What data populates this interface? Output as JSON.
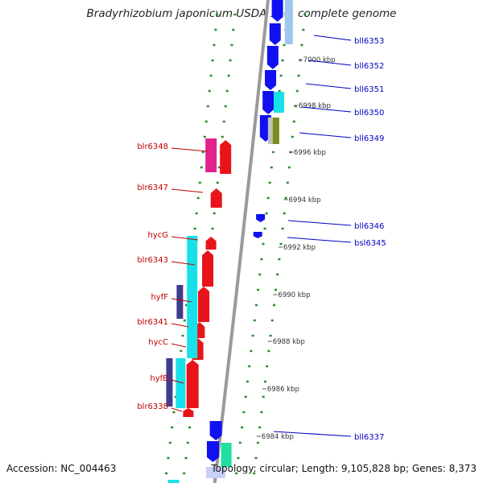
{
  "title": "Bradyrhizobium japonicum USDA 110, complete genome",
  "accession": "Accession: NC_004463",
  "summary": "Topology: circular; Length: 9,105,828 bp; Genes: 8,373",
  "colors": {
    "forward": "#e8141a",
    "forward_alt": "#e0248c",
    "reverse": "#1010f0",
    "cyan": "#18e0e8",
    "navy": "#403c8c",
    "forward_label": "#c00000",
    "reverse_label": "#0000c0",
    "tick": "#2a8a2a",
    "backbone": "#9a9a9a"
  },
  "scale_labels": [
    {
      "text": "7000 kbp"
    },
    {
      "text": "6998 kbp"
    },
    {
      "text": "6996 kbp"
    },
    {
      "text": "6994 kbp"
    },
    {
      "text": "6992 kbp"
    },
    {
      "text": "6990 kbp"
    },
    {
      "text": "6988 kbp"
    },
    {
      "text": "6986 kbp"
    },
    {
      "text": "6984 kbp"
    }
  ],
  "reverse_genes": [
    {
      "name": "bll6353"
    },
    {
      "name": "bll6352"
    },
    {
      "name": "bll6351"
    },
    {
      "name": "bll6350"
    },
    {
      "name": "bll6349"
    },
    {
      "name": "bll6346"
    },
    {
      "name": "bsl6345"
    },
    {
      "name": "bll6337"
    }
  ],
  "forward_genes": [
    {
      "name": "blr6348"
    },
    {
      "name": "blr6347"
    },
    {
      "name": "hycG"
    },
    {
      "name": "blr6343"
    },
    {
      "name": "hyfF"
    },
    {
      "name": "blr6341"
    },
    {
      "name": "hycC"
    },
    {
      "name": "hyfB"
    },
    {
      "name": "blr6338"
    }
  ]
}
